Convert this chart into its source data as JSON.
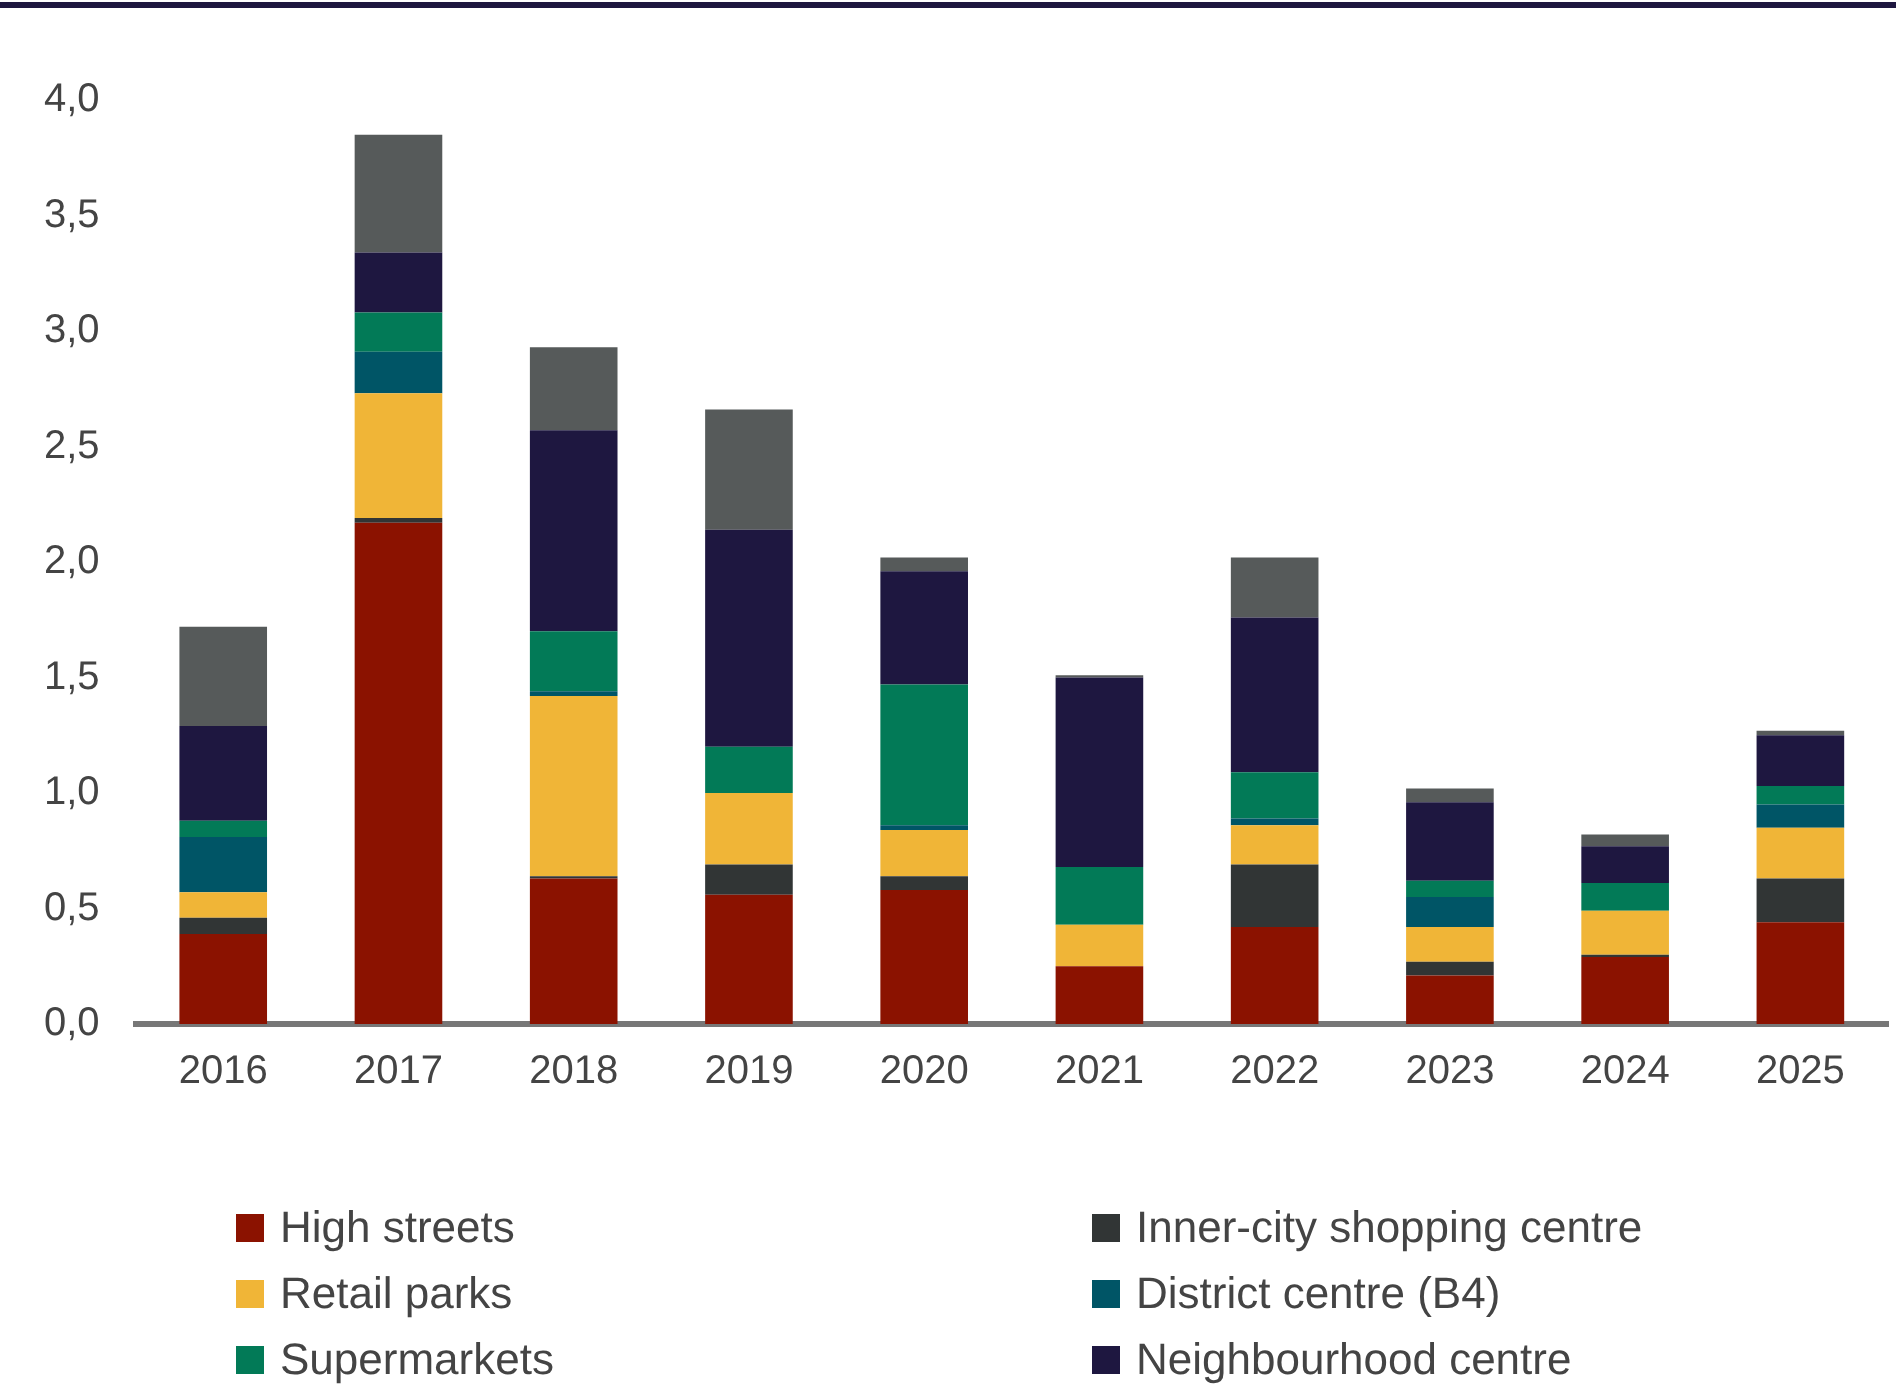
{
  "chart_data": {
    "type": "bar",
    "stacked": true,
    "categories": [
      "2016",
      "2017",
      "2018",
      "2019",
      "2020",
      "2021",
      "2022",
      "2023",
      "2024",
      "2025"
    ],
    "series": [
      {
        "name": "High streets",
        "color": "#8b1200",
        "values": [
          0.39,
          2.17,
          0.63,
          0.56,
          0.58,
          0.25,
          0.42,
          0.21,
          0.29,
          0.44
        ]
      },
      {
        "name": "Inner-city shopping centre",
        "color": "#313535",
        "values": [
          0.07,
          0.02,
          0.01,
          0.13,
          0.06,
          0,
          0.27,
          0.06,
          0.01,
          0.19
        ]
      },
      {
        "name": "Retail parks",
        "color": "#f0b537",
        "values": [
          0.11,
          0.54,
          0.78,
          0.31,
          0.2,
          0.18,
          0.17,
          0.15,
          0.19,
          0.22
        ]
      },
      {
        "name": "District centre (B4)",
        "color": "#005566",
        "values": [
          0.24,
          0.18,
          0.02,
          0,
          0.02,
          0,
          0.03,
          0.13,
          0,
          0.1
        ]
      },
      {
        "name": "Supermarkets",
        "color": "#027a57",
        "values": [
          0.07,
          0.17,
          0.26,
          0.2,
          0.61,
          0.25,
          0.2,
          0.07,
          0.12,
          0.08
        ]
      },
      {
        "name": "Neighbourhood centre",
        "color": "#1e1740",
        "values": [
          0.41,
          0.26,
          0.87,
          0.94,
          0.49,
          0.82,
          0.67,
          0.34,
          0.16,
          0.22
        ]
      },
      {
        "color": "#565a5a",
        "values": [
          0.43,
          0.51,
          0.36,
          0.52,
          0.06,
          0.01,
          0.26,
          0.06,
          0.05,
          0.02
        ]
      }
    ],
    "ylim": [
      0,
      4
    ],
    "yticks": [
      {
        "value": 0,
        "label": "0,0"
      },
      {
        "value": 0.5,
        "label": "0,5"
      },
      {
        "value": 1,
        "label": "1,0"
      },
      {
        "value": 1.5,
        "label": "1,5"
      },
      {
        "value": 2,
        "label": "2,0"
      },
      {
        "value": 2.5,
        "label": "2,5"
      },
      {
        "value": 3,
        "label": "3,0"
      },
      {
        "value": 3.5,
        "label": "3,5"
      },
      {
        "value": 4,
        "label": "4,0"
      }
    ],
    "grid": false,
    "legend": "bottom"
  }
}
